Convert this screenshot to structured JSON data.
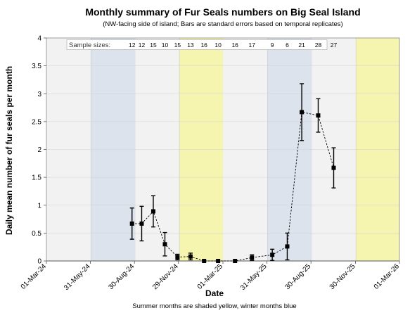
{
  "chart_data": {
    "type": "line",
    "title": "Monthly summary of Fur Seals numbers on Big Seal Island",
    "subtitle": "(NW-facing side of island; Bars are standard errors based on temporal replicates)",
    "xlabel": "Date",
    "ylabel": "Daily mean number of fur seals per month",
    "footnote": "Summer months are shaded yellow, winter months blue",
    "ylim": [
      0,
      4
    ],
    "yticks": [
      "0",
      "0.5",
      "1",
      "1.5",
      "2",
      "2.5",
      "3",
      "3.5",
      "4"
    ],
    "xlim": [
      "2024-03-01",
      "2026-03-01"
    ],
    "xticks": [
      {
        "date": "2024-03-01",
        "label": "01-Mar-24"
      },
      {
        "date": "2024-05-31",
        "label": "31-May-24"
      },
      {
        "date": "2024-08-30",
        "label": "30-Aug-24"
      },
      {
        "date": "2024-11-29",
        "label": "29-Nov-24"
      },
      {
        "date": "2025-03-01",
        "label": "01-Mar-25"
      },
      {
        "date": "2025-05-31",
        "label": "31-May-25"
      },
      {
        "date": "2025-08-30",
        "label": "30-Aug-25"
      },
      {
        "date": "2025-11-30",
        "label": "30-Nov-25"
      },
      {
        "date": "2026-03-01",
        "label": "01-Mar-26"
      }
    ],
    "grid": "horizontal",
    "shaded_periods": [
      {
        "season": "winter",
        "start": "2024-06-01",
        "end": "2024-09-01",
        "color": "#dce3ed"
      },
      {
        "season": "summer",
        "start": "2024-12-01",
        "end": "2025-03-01",
        "color": "#f5f5b0"
      },
      {
        "season": "winter",
        "start": "2025-06-01",
        "end": "2025-09-01",
        "color": "#dce3ed"
      },
      {
        "season": "summer",
        "start": "2025-12-01",
        "end": "2026-03-01",
        "color": "#f5f5b0"
      }
    ],
    "sample_sizes_label": "Sample sizes:",
    "series": [
      {
        "points": [
          {
            "date": "2024-08-25",
            "y": 0.67,
            "se": 0.28,
            "n": "12"
          },
          {
            "date": "2024-09-14",
            "y": 0.67,
            "se": 0.31,
            "n": "12"
          },
          {
            "date": "2024-10-08",
            "y": 0.89,
            "se": 0.28,
            "n": "15"
          },
          {
            "date": "2024-11-01",
            "y": 0.3,
            "se": 0.21,
            "n": "10"
          },
          {
            "date": "2024-11-27",
            "y": 0.07,
            "se": 0.05,
            "n": "15"
          },
          {
            "date": "2024-12-24",
            "y": 0.08,
            "se": 0.06,
            "n": "13"
          },
          {
            "date": "2025-01-21",
            "y": 0.0,
            "se": 0.0,
            "n": "16"
          },
          {
            "date": "2025-02-19",
            "y": 0.0,
            "se": 0.0,
            "n": "10"
          },
          {
            "date": "2025-03-26",
            "y": 0.0,
            "se": 0.0,
            "n": "16"
          },
          {
            "date": "2025-04-30",
            "y": 0.06,
            "se": 0.05,
            "n": "17"
          },
          {
            "date": "2025-06-11",
            "y": 0.11,
            "se": 0.1,
            "n": "9"
          },
          {
            "date": "2025-07-12",
            "y": 0.26,
            "se": 0.24,
            "n": "6"
          },
          {
            "date": "2025-08-11",
            "y": 2.67,
            "se": 0.51,
            "n": "21"
          },
          {
            "date": "2025-09-14",
            "y": 2.61,
            "se": 0.3,
            "n": "28"
          },
          {
            "date": "2025-10-16",
            "y": 1.67,
            "se": 0.36,
            "n": "27"
          }
        ]
      }
    ]
  }
}
